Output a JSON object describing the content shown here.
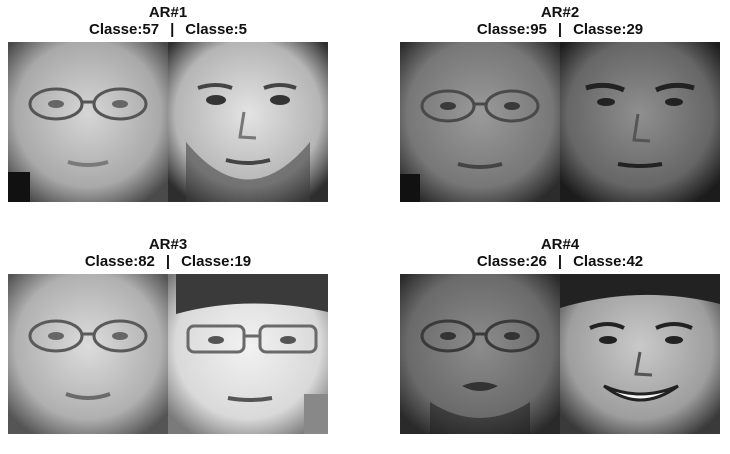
{
  "panels": [
    {
      "title": "AR#1",
      "left_class": "Classe:57",
      "separator": "|",
      "right_class": "Classe:5"
    },
    {
      "title": "AR#2",
      "left_class": "Classe:95",
      "separator": "|",
      "right_class": "Classe:29"
    },
    {
      "title": "AR#3",
      "left_class": "Classe:82",
      "separator": "|",
      "right_class": "Classe:19"
    },
    {
      "title": "AR#4",
      "left_class": "Classe:26",
      "separator": "|",
      "right_class": "Classe:42"
    }
  ]
}
